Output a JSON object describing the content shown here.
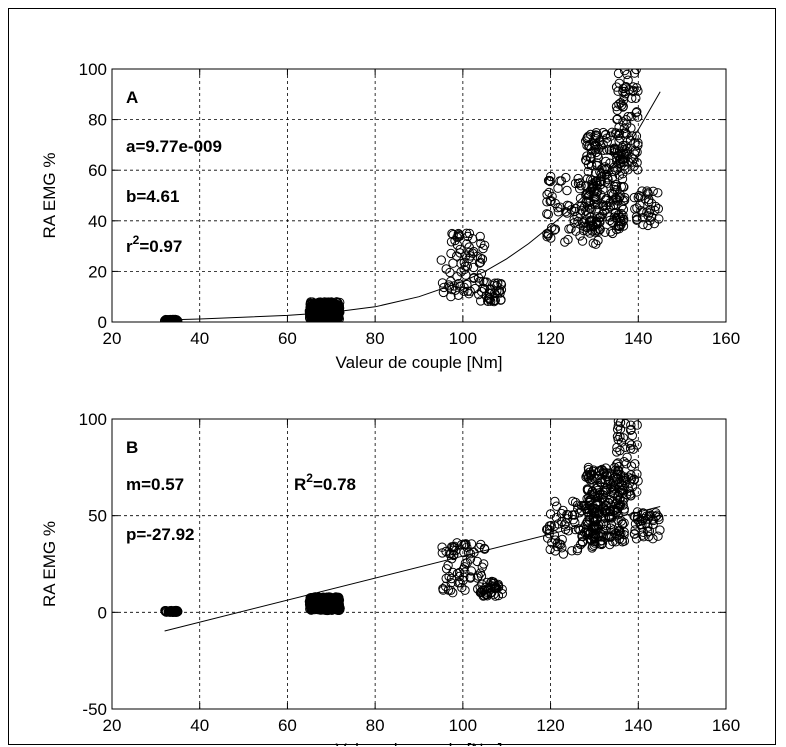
{
  "chart_data": [
    {
      "type": "scatter",
      "panel_label": "A",
      "xlabel": "Valeur de couple [Nm]",
      "ylabel": "RA EMG %",
      "xlim": [
        20,
        160
      ],
      "ylim": [
        0,
        100
      ],
      "xticks": [
        20,
        40,
        60,
        80,
        100,
        120,
        140,
        160
      ],
      "yticks": [
        0,
        20,
        40,
        60,
        80,
        100
      ],
      "grid": true,
      "annotations": [
        {
          "text": "a=9.77e-009"
        },
        {
          "text": "b=4.61"
        },
        {
          "text": "r",
          "sup": "2",
          "tail": "=0.97"
        }
      ],
      "clusters": [
        {
          "x_range": [
            32,
            35
          ],
          "y_range": [
            0,
            1
          ],
          "n": 60
        },
        {
          "x_range": [
            65,
            72
          ],
          "y_range": [
            1,
            8
          ],
          "n": 360
        },
        {
          "x_range": [
            95,
            109
          ],
          "y_range": [
            8,
            36
          ],
          "n": 110
        },
        {
          "x_range": [
            119,
            145
          ],
          "y_range": [
            22,
            100
          ],
          "n": 420
        }
      ],
      "fit": {
        "model": "power",
        "x": [
          32,
          40,
          60,
          70,
          80,
          90,
          100,
          105,
          110,
          115,
          120,
          125,
          130,
          135,
          140,
          145
        ],
        "y": [
          0.8,
          1.2,
          2.6,
          3.8,
          6.0,
          10.0,
          16.0,
          20.0,
          25.0,
          31.0,
          38.0,
          45.5,
          54.0,
          63.5,
          76.0,
          91.0
        ]
      }
    },
    {
      "type": "scatter",
      "panel_label": "B",
      "xlabel": "Valeur de couple [Nm]",
      "ylabel": "RA EMG %",
      "xlim": [
        20,
        160
      ],
      "ylim": [
        -50,
        100
      ],
      "xticks": [
        20,
        40,
        60,
        80,
        100,
        120,
        140,
        160
      ],
      "yticks": [
        -50,
        0,
        50,
        100
      ],
      "grid": true,
      "annotations": [
        {
          "text": "m=0.57"
        },
        {
          "text": "p=-27.92"
        },
        {
          "text": "R",
          "sup": "2",
          "tail": "=0.78"
        }
      ],
      "clusters": [
        {
          "x_range": [
            32,
            35
          ],
          "y_range": [
            0,
            1
          ],
          "n": 60
        },
        {
          "x_range": [
            65,
            72
          ],
          "y_range": [
            1,
            8
          ],
          "n": 360
        },
        {
          "x_range": [
            95,
            109
          ],
          "y_range": [
            8,
            36
          ],
          "n": 110
        },
        {
          "x_range": [
            119,
            145
          ],
          "y_range": [
            22,
            100
          ],
          "n": 420
        }
      ],
      "fit": {
        "model": "linear",
        "x": [
          32,
          145
        ],
        "y": [
          -9.68,
          54.73
        ]
      }
    }
  ]
}
